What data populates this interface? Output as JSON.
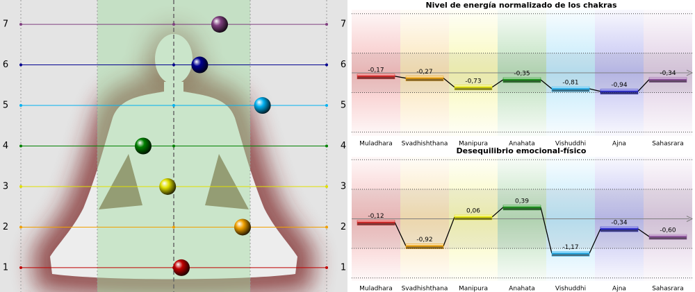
{
  "chart_data": [
    {
      "type": "scatter",
      "x": [
        0.05,
        0.45,
        -0.04,
        -0.2,
        0.58,
        0.17,
        0.3
      ],
      "y": [
        1,
        2,
        3,
        4,
        5,
        6,
        7
      ],
      "colors": [
        "#c00000",
        "#f0a000",
        "#e0e000",
        "#008000",
        "#00b0f0",
        "#000090",
        "#7f3f7f"
      ],
      "xlim": [
        -1,
        1
      ],
      "xticks": [
        -1,
        -0.5,
        0,
        0.5,
        1
      ],
      "ylim": [
        0.4,
        7.6
      ],
      "yticks": [
        1,
        2,
        3,
        4,
        5,
        6,
        7
      ]
    },
    {
      "type": "step-bar",
      "title": "Nivel de energía normalizado de los chakras",
      "categories": [
        "Muladhara",
        "Svadhishthana",
        "Manipura",
        "Anahata",
        "Vishuddhi",
        "Ajna",
        "Sahasrara"
      ],
      "values": [
        -0.17,
        -0.27,
        -0.73,
        -0.35,
        -0.81,
        -0.94,
        -0.34
      ],
      "value_labels": [
        "-0,17",
        "-0,27",
        "-0,73",
        "-0,35",
        "-0,81",
        "-0,94",
        "-0,34"
      ],
      "colors": [
        "#e02020",
        "#f0a000",
        "#e8e800",
        "#109010",
        "#20b0f0",
        "#2020d0",
        "#9050a0"
      ],
      "ylim": [
        -3.2,
        3.2
      ],
      "yticks": [
        -3,
        -1,
        0,
        1,
        3
      ]
    },
    {
      "type": "step-bar",
      "title": "Desequilibrio emocional-físico",
      "categories": [
        "Muladhara",
        "Svadhishthana",
        "Manipura",
        "Anahata",
        "Vishuddhi",
        "Ajna",
        "Sahasrara"
      ],
      "values": [
        -0.12,
        -0.92,
        0.06,
        0.39,
        -1.17,
        -0.34,
        -0.6
      ],
      "value_labels": [
        "-0,12",
        "-0,92",
        "0,06",
        "0,39",
        "-1,17",
        "-0,34",
        "-0,60"
      ],
      "colors": [
        "#e02020",
        "#f0a000",
        "#e8e800",
        "#109010",
        "#20b0f0",
        "#2020d0",
        "#9050a0"
      ],
      "ylim": [
        -2.1,
        2.1
      ],
      "yticks": [
        -2,
        -1,
        0,
        1,
        2
      ]
    }
  ]
}
